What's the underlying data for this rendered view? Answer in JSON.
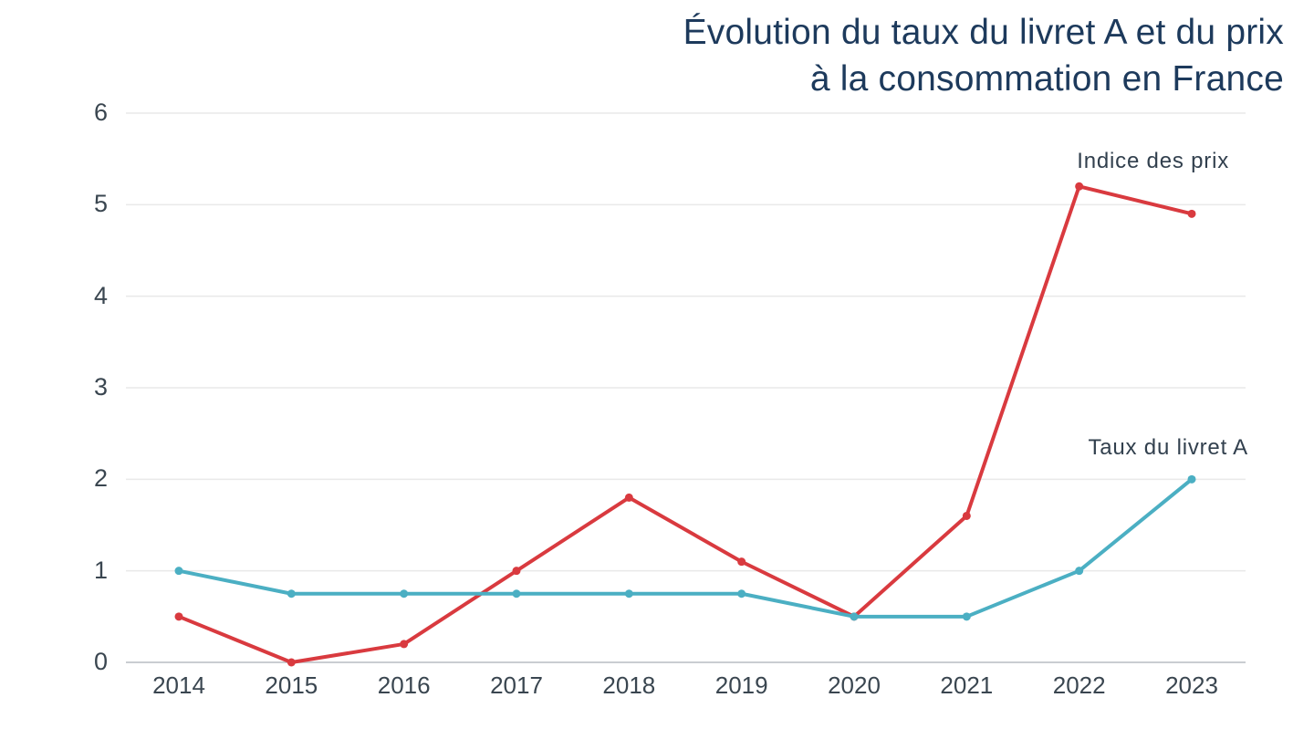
{
  "page": {
    "background": "#ffffff"
  },
  "title": {
    "line1": "Évolution du taux du livret A et du prix",
    "line2": "à la consommation en France",
    "color": "#1d3a5c"
  },
  "chart_data": {
    "type": "line",
    "x": [
      2014,
      2015,
      2016,
      2017,
      2018,
      2019,
      2020,
      2021,
      2022,
      2023
    ],
    "series": [
      {
        "name": "Indice des prix",
        "color": "#d93a3f",
        "values": [
          0.5,
          0.0,
          0.2,
          1.0,
          1.8,
          1.1,
          0.5,
          1.6,
          5.2,
          4.9
        ]
      },
      {
        "name": "Taux du livret A",
        "color": "#4bafc3",
        "values": [
          1.0,
          0.75,
          0.75,
          0.75,
          0.75,
          0.75,
          0.5,
          0.5,
          1.0,
          2.0
        ]
      }
    ],
    "title": "Évolution du taux du livret A et du prix à la consommation en France",
    "xlabel": "",
    "ylabel": "",
    "ylim": [
      0,
      6
    ],
    "yticks": [
      0,
      1,
      2,
      3,
      4,
      5,
      6
    ],
    "grid": true,
    "legend_position": "inline-right-of-plot",
    "grid_color": "#e9e9e9",
    "axis_line_color": "#c9cdd1",
    "tick_label_color": "#3a4650",
    "marker": "circle"
  }
}
